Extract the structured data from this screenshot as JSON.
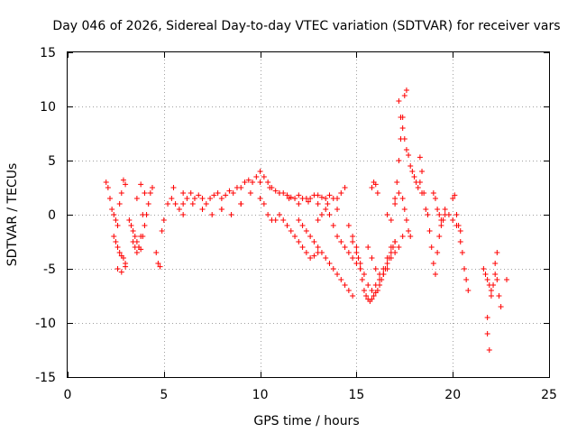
{
  "chart_data": {
    "type": "scatter",
    "title": "Day 046 of 2026, Sidereal Day-to-day VTEC variation (SDTVAR) for receiver vars",
    "xlabel": "GPS time / hours",
    "ylabel": "SDTVAR / TECUs",
    "xlim": [
      0,
      25
    ],
    "ylim": [
      -15,
      15
    ],
    "xticks": [
      0,
      5,
      10,
      15,
      20,
      25
    ],
    "yticks": [
      -15,
      -10,
      -5,
      0,
      5,
      10,
      15
    ],
    "grid": true,
    "marker": "+",
    "color": "#ff0000",
    "series": [
      {
        "name": "SDTVAR",
        "x": [
          2.0,
          2.1,
          2.2,
          2.3,
          2.4,
          2.5,
          2.6,
          2.7,
          2.8,
          2.9,
          3.0,
          2.4,
          2.5,
          2.6,
          2.7,
          2.8,
          2.9,
          3.0,
          2.6,
          2.8,
          3.0,
          3.2,
          3.3,
          3.4,
          3.5,
          3.6,
          3.7,
          3.8,
          3.9,
          4.0,
          4.1,
          4.2,
          4.3,
          4.4,
          3.4,
          3.5,
          3.6,
          3.7,
          3.8,
          3.9,
          4.0,
          3.6,
          3.8,
          4.6,
          4.7,
          4.8,
          4.9,
          5.0,
          5.2,
          5.4,
          5.6,
          5.8,
          6.0,
          6.2,
          6.4,
          6.6,
          6.8,
          7.0,
          7.2,
          7.4,
          7.6,
          7.8,
          8.0,
          8.2,
          8.4,
          8.6,
          8.8,
          9.0,
          9.2,
          9.4,
          9.6,
          9.8,
          10.0,
          10.2,
          10.4,
          10.6,
          10.8,
          11.0,
          11.2,
          11.4,
          11.6,
          11.8,
          12.0,
          12.2,
          12.4,
          12.6,
          12.8,
          13.0,
          13.2,
          13.4,
          13.6,
          13.8,
          14.0,
          14.2,
          14.4,
          5.5,
          6.0,
          6.5,
          7.0,
          7.5,
          8.0,
          8.5,
          9.0,
          9.5,
          10.0,
          10.5,
          11.0,
          11.5,
          12.0,
          12.5,
          13.0,
          13.5,
          14.0,
          6.0,
          7.0,
          8.0,
          9.0,
          10.0,
          10.2,
          10.4,
          10.6,
          10.8,
          11.0,
          11.2,
          11.4,
          11.6,
          11.8,
          12.0,
          12.2,
          12.4,
          12.6,
          12.8,
          13.0,
          12.0,
          12.2,
          12.4,
          12.6,
          12.8,
          13.0,
          13.2,
          13.4,
          13.6,
          13.8,
          14.0,
          14.2,
          14.4,
          14.6,
          14.8,
          13.0,
          13.2,
          13.4,
          13.6,
          13.8,
          14.0,
          14.2,
          14.4,
          14.6,
          14.8,
          15.0,
          15.2,
          14.6,
          14.8,
          15.0,
          15.1,
          15.2,
          15.3,
          15.4,
          15.5,
          15.6,
          15.7,
          15.8,
          15.9,
          16.0,
          16.1,
          16.2,
          16.3,
          16.4,
          16.5,
          16.6,
          16.7,
          16.8,
          16.9,
          17.0,
          14.8,
          15.0,
          15.2,
          15.4,
          15.6,
          15.8,
          16.0,
          16.2,
          16.4,
          16.6,
          16.8,
          17.0,
          17.2,
          17.4,
          15.6,
          15.8,
          16.0,
          16.2,
          16.4,
          16.6,
          16.8,
          17.0,
          15.8,
          15.9,
          16.0,
          16.1,
          16.6,
          16.8,
          17.0,
          17.2,
          17.4,
          17.5,
          17.6,
          17.7,
          17.8,
          17.0,
          17.1,
          17.2,
          17.3,
          17.4,
          17.5,
          17.6,
          17.2,
          17.3,
          17.4,
          17.5,
          17.6,
          17.7,
          17.8,
          17.9,
          18.0,
          18.1,
          18.2,
          18.3,
          18.4,
          18.3,
          18.4,
          18.5,
          18.6,
          18.7,
          18.8,
          18.9,
          19.0,
          19.1,
          19.2,
          19.3,
          19.4,
          19.5,
          19.6,
          19.0,
          19.1,
          19.2,
          19.3,
          19.4,
          19.6,
          19.8,
          20.0,
          20.1,
          20.2,
          20.3,
          20.4,
          20.5,
          20.6,
          20.7,
          20.8,
          20.0,
          20.2,
          20.4,
          21.6,
          21.7,
          21.8,
          21.9,
          22.0,
          22.1,
          22.2,
          22.3,
          22.4,
          22.5,
          21.8,
          21.8,
          21.9,
          22.0,
          22.2,
          22.3,
          22.8
        ],
        "y": [
          3.0,
          2.5,
          1.5,
          0.5,
          0.0,
          -0.5,
          -1.0,
          1.0,
          2.0,
          3.2,
          2.8,
          -2.0,
          -2.5,
          -3.0,
          -3.5,
          -3.8,
          -4.0,
          -4.5,
          -5.0,
          -5.3,
          -4.8,
          -0.5,
          -1.0,
          -1.5,
          -2.0,
          -2.5,
          -3.0,
          -3.2,
          -2.0,
          -1.0,
          0.0,
          1.0,
          2.0,
          2.5,
          -2.5,
          -3.0,
          -3.5,
          -3.0,
          -2.0,
          0.0,
          2.0,
          1.5,
          2.8,
          -3.5,
          -4.5,
          -4.8,
          -1.5,
          -0.5,
          1.0,
          1.5,
          1.0,
          0.5,
          1.0,
          1.5,
          2.0,
          1.5,
          1.8,
          1.5,
          1.0,
          1.5,
          1.8,
          2.0,
          1.5,
          1.8,
          2.2,
          2.0,
          2.5,
          2.5,
          3.0,
          3.2,
          3.0,
          3.5,
          4.0,
          3.5,
          3.0,
          2.5,
          2.2,
          2.0,
          2.0,
          1.8,
          1.6,
          1.5,
          1.8,
          1.5,
          1.5,
          1.5,
          1.8,
          1.8,
          1.6,
          1.5,
          1.8,
          1.5,
          1.5,
          2.0,
          2.5,
          2.5,
          2.0,
          1.0,
          0.5,
          0.0,
          0.5,
          0.0,
          1.0,
          2.0,
          3.0,
          2.5,
          2.0,
          1.5,
          1.0,
          1.2,
          1.0,
          1.0,
          0.5,
          0.0,
          0.5,
          0.5,
          1.0,
          1.5,
          1.0,
          0.0,
          -0.5,
          -0.5,
          0.0,
          -0.5,
          -1.0,
          -1.5,
          -2.0,
          -2.5,
          -3.0,
          -3.5,
          -4.0,
          -3.8,
          -3.5,
          -0.5,
          -1.0,
          -1.5,
          -2.0,
          -2.5,
          -3.0,
          -3.5,
          -4.0,
          -4.5,
          -5.0,
          -5.5,
          -6.0,
          -6.5,
          -7.0,
          -7.5,
          -0.5,
          0.0,
          0.5,
          0.0,
          -1.0,
          -2.0,
          -2.5,
          -3.0,
          -3.5,
          -4.0,
          -4.5,
          -5.0,
          -1.0,
          -2.0,
          -3.0,
          -4.0,
          -5.0,
          -6.0,
          -7.0,
          -7.5,
          -7.8,
          -8.0,
          -7.8,
          -7.5,
          -7.2,
          -7.0,
          -6.5,
          -6.0,
          -5.5,
          -5.0,
          -4.5,
          -4.0,
          -3.5,
          -3.0,
          -2.5,
          -2.5,
          -3.5,
          -4.5,
          -5.5,
          -6.5,
          -7.0,
          -6.5,
          -6.0,
          -5.5,
          -5.0,
          -4.0,
          -3.5,
          -3.0,
          -2.0,
          -3.0,
          -4.0,
          -5.0,
          -5.5,
          -5.0,
          -4.0,
          -3.0,
          -2.5,
          2.5,
          3.0,
          2.8,
          2.0,
          0.0,
          -0.5,
          1.0,
          2.0,
          1.5,
          0.5,
          -0.5,
          -1.5,
          -2.0,
          1.5,
          3.0,
          5.0,
          7.0,
          9.0,
          11.0,
          11.5,
          10.5,
          9.0,
          8.0,
          7.0,
          6.0,
          5.5,
          4.5,
          4.0,
          3.5,
          3.0,
          2.5,
          3.0,
          2.0,
          5.3,
          4.0,
          2.0,
          0.5,
          0.0,
          -1.5,
          -3.0,
          -4.5,
          -5.5,
          -3.5,
          -2.0,
          -1.0,
          -0.5,
          0.0,
          2.0,
          1.5,
          0.5,
          0.0,
          -0.5,
          0.5,
          0.0,
          1.5,
          1.8,
          0.0,
          -1.0,
          -2.5,
          -3.5,
          -5.0,
          -6.0,
          -7.0,
          -0.5,
          -1.0,
          -1.5,
          -5.0,
          -5.5,
          -6.0,
          -6.5,
          -7.0,
          -6.5,
          -5.5,
          -6.0,
          -7.5,
          -8.5,
          -9.5,
          -11.0,
          -12.5,
          -7.5,
          -4.5,
          -3.5,
          -6.0
        ]
      }
    ]
  }
}
